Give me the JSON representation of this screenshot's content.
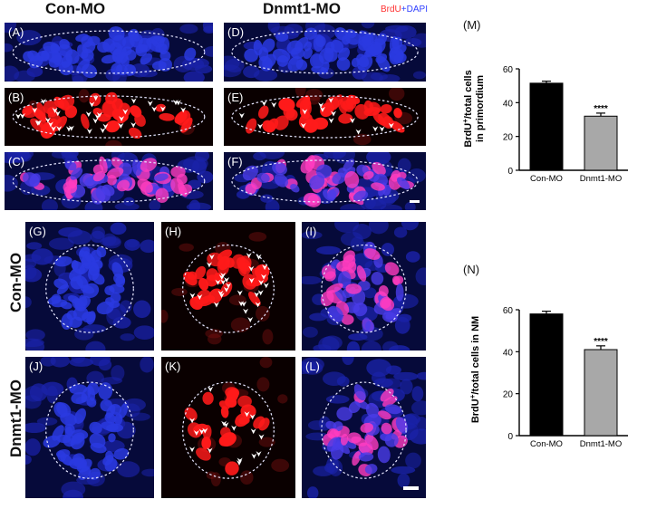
{
  "figure": {
    "columns": [
      "Con-MO",
      "Dnmt1-MO"
    ],
    "rows": [
      "Con-MO",
      "Dnmt1-MO"
    ],
    "legend": {
      "part1": "BrdU",
      "plus": "+",
      "part2": "DAPI"
    },
    "panel_labels": [
      "(A)",
      "(B)",
      "(C)",
      "(D)",
      "(E)",
      "(F)",
      "(G)",
      "(H)",
      "(I)",
      "(J)",
      "(K)",
      "(L)"
    ],
    "colors": {
      "dapi": "#1f2cc8",
      "brdu": "#ff1a1a",
      "merge": "#ff3cc0",
      "bar_control": "#000000",
      "bar_treated": "#a8a8a8"
    }
  },
  "chart_data": [
    {
      "type": "bar",
      "panel": "(M)",
      "categories": [
        "Con-MO",
        "Dnmt1-MO"
      ],
      "values": [
        51.5,
        32
      ],
      "errors": [
        1.2,
        1.8
      ],
      "significance": [
        "",
        "****"
      ],
      "ylabel": "BrdU+/total cells in primordium",
      "ylabel_line1": "BrdU",
      "ylabel_sup": "+",
      "ylabel_rest": "/total cells",
      "ylabel_line2": "in primordium",
      "ylim": [
        0,
        60
      ],
      "yticks": [
        "0",
        "20",
        "40",
        "60"
      ]
    },
    {
      "type": "bar",
      "panel": "(N)",
      "categories": [
        "Con-MO",
        "Dnmt1-MO"
      ],
      "values": [
        58,
        41
      ],
      "errors": [
        1.3,
        1.8
      ],
      "significance": [
        "",
        "****"
      ],
      "ylabel": "BrdU+/total cells in NM",
      "ylabel_line1": "BrdU",
      "ylabel_sup": "+",
      "ylabel_rest": "/total cells in NM",
      "ylim": [
        0,
        60
      ],
      "yticks": [
        "0",
        "20",
        "40",
        "60"
      ]
    }
  ]
}
